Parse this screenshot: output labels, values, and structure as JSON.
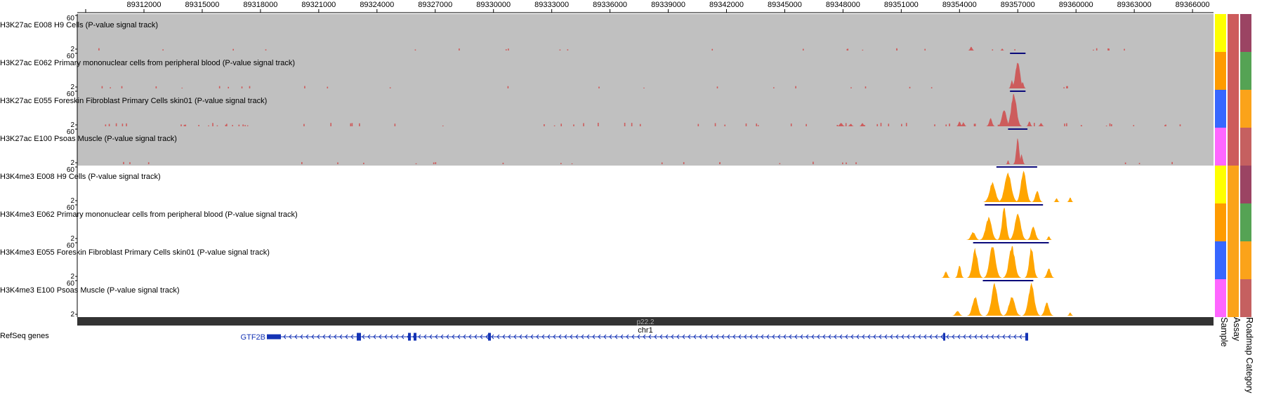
{
  "ruler": {
    "ticks": [
      "89312000",
      "89315000",
      "89318000",
      "89321000",
      "89324000",
      "89327000",
      "89330000",
      "89333000",
      "89336000",
      "89339000",
      "89342000",
      "89345000",
      "89348000",
      "89351000",
      "89354000",
      "89357000",
      "89360000",
      "89363000",
      "89366000"
    ]
  },
  "tracks": [
    {
      "label": "H3K27ac E008 H9 Cells (P-value signal track)",
      "ymax": "60",
      "ymin": "2",
      "assay": "H3K27ac",
      "background": "#c0c0c0",
      "color": "#cd5c5c",
      "sample_color": "#ffff00",
      "assay_color": "#cd5c5c",
      "category_color": "#9b4463"
    },
    {
      "label": "H3K27ac E062 Primary mononuclear cells from peripheral blood (P-value signal track)",
      "ymax": "60",
      "ymin": "2",
      "assay": "H3K27ac",
      "background": "#c0c0c0",
      "color": "#cd5c5c",
      "sample_color": "#ff9b00",
      "assay_color": "#cd5c5c",
      "category_color": "#55a354"
    },
    {
      "label": "H3K27ac E055 Foreskin Fibroblast Primary Cells skin01 (P-value signal track)",
      "ymax": "60",
      "ymin": "2",
      "assay": "H3K27ac",
      "background": "#c0c0c0",
      "color": "#cd5c5c",
      "sample_color": "#3767ff",
      "assay_color": "#cd5c5c",
      "category_color": "#fba31a"
    },
    {
      "label": "H3K27ac E100 Psoas Muscle (P-value signal track)",
      "ymax": "60",
      "ymin": "2",
      "assay": "H3K27ac",
      "background": "#c0c0c0",
      "color": "#cd5c5c",
      "sample_color": "#ff66ff",
      "assay_color": "#cd5c5c",
      "category_color": "#c56060"
    },
    {
      "label": "H3K4me3 E008 H9 Cells (P-value signal track)",
      "ymax": "60",
      "ymin": "2",
      "assay": "H3K4me3",
      "background": "#ffffff",
      "color": "#ffa500",
      "sample_color": "#ffff00",
      "assay_color": "#fba31a",
      "category_color": "#9b4463"
    },
    {
      "label": "H3K4me3 E062 Primary mononuclear cells from peripheral blood (P-value signal track)",
      "ymax": "60",
      "ymin": "2",
      "assay": "H3K4me3",
      "background": "#ffffff",
      "color": "#ffa500",
      "sample_color": "#ff9b00",
      "assay_color": "#fba31a",
      "category_color": "#55a354"
    },
    {
      "label": "H3K4me3 E055 Foreskin Fibroblast Primary Cells skin01 (P-value signal track)",
      "ymax": "60",
      "ymin": "2",
      "assay": "H3K4me3",
      "background": "#ffffff",
      "color": "#ffa500",
      "sample_color": "#3767ff",
      "assay_color": "#fba31a",
      "category_color": "#fba31a"
    },
    {
      "label": "H3K4me3 E100 Psoas Muscle (P-value signal track)",
      "ymax": "60",
      "ymin": "2",
      "assay": "H3K4me3",
      "background": "#ffffff",
      "color": "#ffa500",
      "sample_color": "#ff66ff",
      "assay_color": "#fba31a",
      "category_color": "#c56060"
    }
  ],
  "ideogram": {
    "band": "p22.2",
    "chromosome": "chr1"
  },
  "refseq": {
    "label": "RefSeq genes",
    "gene": "GTF2B",
    "strand": "minus",
    "color": "#1433b5"
  },
  "metadata_columns": [
    "Sample",
    "Assay",
    "Roadmap Category"
  ]
}
